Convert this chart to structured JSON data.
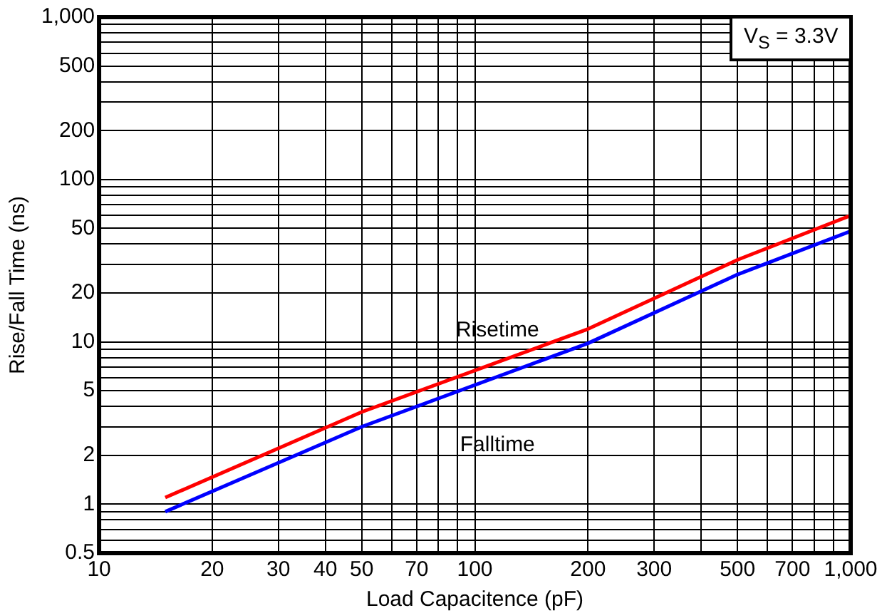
{
  "chart_data": {
    "type": "line",
    "xlabel": "Load Capacitence (pF)",
    "ylabel": "Rise/Fall Time (ns)",
    "log": "xy",
    "grid": true,
    "legend": false,
    "marker": "none",
    "line_style": "solid",
    "x": [
      15,
      50,
      200,
      500,
      1000
    ],
    "series": [
      {
        "name": "Risetime",
        "color": "#ff0000",
        "values": [
          1.1,
          3.7,
          12,
          32,
          60
        ]
      },
      {
        "name": "Falltime",
        "color": "#0000ff",
        "values": [
          0.9,
          3.0,
          9.8,
          26,
          48
        ]
      }
    ],
    "xlim": [
      10,
      1000
    ],
    "ylim": [
      0.5,
      1000
    ],
    "xticks": [
      10,
      20,
      30,
      40,
      50,
      {
        "value": 60,
        "label": null
      },
      70,
      {
        "value": 80,
        "label": null
      },
      {
        "value": 90,
        "label": null
      },
      100,
      200,
      300,
      {
        "value": 400,
        "label": null
      },
      500,
      {
        "value": 600,
        "label": null
      },
      700,
      {
        "value": 800,
        "label": null
      },
      {
        "value": 900,
        "label": null
      },
      {
        "value": 1000,
        "label": "1,000"
      }
    ],
    "yticks": [
      0.5,
      {
        "value": 0.6,
        "label": null
      },
      {
        "value": 0.7,
        "label": null
      },
      {
        "value": 0.8,
        "label": null
      },
      {
        "value": 0.9,
        "label": null
      },
      1,
      2,
      {
        "value": 3,
        "label": null
      },
      {
        "value": 4,
        "label": null
      },
      5,
      {
        "value": 6,
        "label": null
      },
      {
        "value": 7,
        "label": null
      },
      {
        "value": 8,
        "label": null
      },
      {
        "value": 9,
        "label": null
      },
      10,
      20,
      {
        "value": 30,
        "label": null
      },
      {
        "value": 40,
        "label": null
      },
      50,
      {
        "value": 60,
        "label": null
      },
      {
        "value": 70,
        "label": null
      },
      {
        "value": 80,
        "label": null
      },
      {
        "value": 90,
        "label": null
      },
      100,
      200,
      {
        "value": 300,
        "label": null
      },
      {
        "value": 400,
        "label": null
      },
      500,
      {
        "value": 600,
        "label": null
      },
      {
        "value": 700,
        "label": null
      },
      {
        "value": 800,
        "label": null
      },
      {
        "value": 900,
        "label": null
      },
      {
        "value": 1000,
        "label": "1,000"
      }
    ],
    "annotations": [
      "V$_{S}$ = 3.3V"
    ]
  }
}
